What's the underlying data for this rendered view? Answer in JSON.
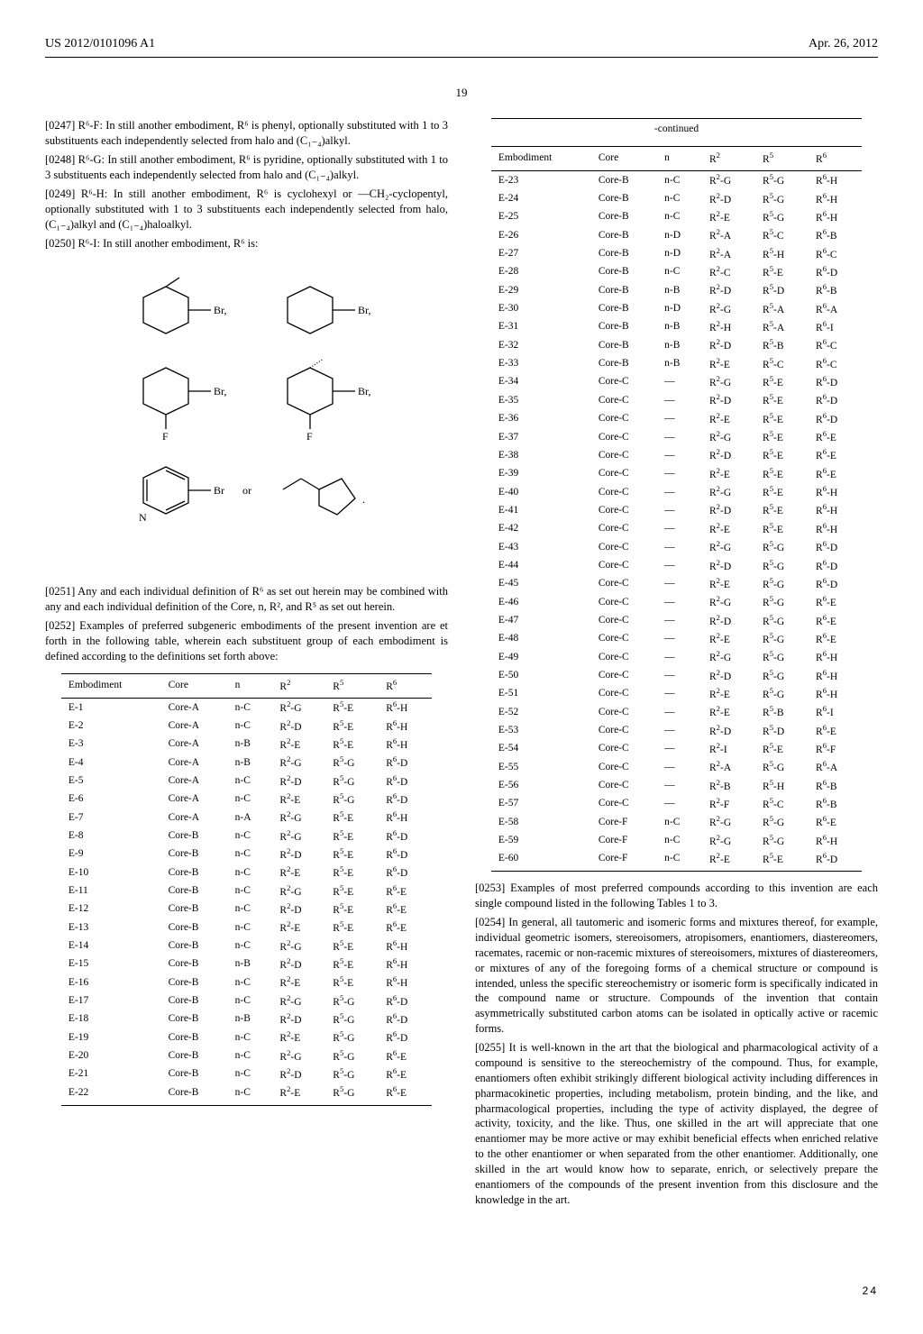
{
  "header": {
    "left": "US 2012/0101096 A1",
    "right": "Apr. 26, 2012"
  },
  "page_center": "19",
  "paras": {
    "p0247": "[0247]   R⁶-F: In still another embodiment, R⁶ is phenyl, optionally substituted with 1 to 3 substituents each independently selected from halo and (C₁₋₄)alkyl.",
    "p0248": "[0248]   R⁶-G: In still another embodiment, R⁶ is pyridine, optionally substituted with 1 to 3 substituents each independently selected from halo and (C₁₋₄)alkyl.",
    "p0249": "[0249]   R⁶-H: In still another embodiment, R⁶ is cyclohexyl or —CH₂-cyclopentyl, optionally substituted with 1 to 3 substituents each independently selected from halo, (C₁₋₄)alkyl and (C₁₋₄)haloalkyl.",
    "p0250": "[0250]   R⁶-I: In still another embodiment, R⁶ is:",
    "p0251": "[0251]   Any and each individual definition of R⁶ as set out herein may be combined with any and each individual definition of the Core, n, R², and R⁵ as set out herein.",
    "p0252": "[0252]   Examples of preferred subgeneric embodiments of the present invention are et forth in the following table, wherein each substituent group of each embodiment is defined according to the definitions set forth above:",
    "p0253": "[0253]   Examples of most preferred compounds according to this invention are each single compound listed in the following Tables 1 to 3.",
    "p0254": "[0254]   In general, all tautomeric and isomeric forms and mixtures thereof, for example, individual geometric isomers, stereoisomers, atropisomers, enantiomers, diastereomers, racemates, racemic or non-racemic mixtures of stereoisomers, mixtures of diastereomers, or mixtures of any of the foregoing forms of a chemical structure or compound is intended, unless the specific stereochemistry or isomeric form is specifically indicated in the compound name or structure. Compounds of the invention that contain asymmetrically substituted carbon atoms can be isolated in optically active or racemic forms.",
    "p0255": "[0255]   It is well-known in the art that the biological and pharmacological activity of a compound is sensitive to the stereochemistry of the compound. Thus, for example, enantiomers often exhibit strikingly different biological activity including differences in pharmacokinetic properties, including metabolism, protein binding, and the like, and pharmacological properties, including the type of activity displayed, the degree of activity, toxicity, and the like. Thus, one skilled in the art will appreciate that one enantiomer may be more active or may exhibit beneficial effects when enriched relative to the other enantiomer or when separated from the other enantiomer. Additionally, one skilled in the art would know how to separate, enrich, or selectively prepare the enantiomers of the compounds of the present invention from this disclosure and the knowledge in the art."
  },
  "continued_label": "-continued",
  "table_headers": [
    "Embodiment",
    "Core",
    "n",
    "R²",
    "R⁵",
    "R⁶"
  ],
  "table1": [
    [
      "E-1",
      "Core-A",
      "n-C",
      "R²-G",
      "R⁵-E",
      "R⁶-H"
    ],
    [
      "E-2",
      "Core-A",
      "n-C",
      "R²-D",
      "R⁵-E",
      "R⁶-H"
    ],
    [
      "E-3",
      "Core-A",
      "n-B",
      "R²-E",
      "R⁵-E",
      "R⁶-H"
    ],
    [
      "E-4",
      "Core-A",
      "n-B",
      "R²-G",
      "R⁵-G",
      "R⁶-D"
    ],
    [
      "E-5",
      "Core-A",
      "n-C",
      "R²-D",
      "R⁵-G",
      "R⁶-D"
    ],
    [
      "E-6",
      "Core-A",
      "n-C",
      "R²-E",
      "R⁵-G",
      "R⁶-D"
    ],
    [
      "E-7",
      "Core-A",
      "n-A",
      "R²-G",
      "R⁵-E",
      "R⁶-H"
    ],
    [
      "E-8",
      "Core-B",
      "n-C",
      "R²-G",
      "R⁵-E",
      "R⁶-D"
    ],
    [
      "E-9",
      "Core-B",
      "n-C",
      "R²-D",
      "R⁵-E",
      "R⁶-D"
    ],
    [
      "E-10",
      "Core-B",
      "n-C",
      "R²-E",
      "R⁵-E",
      "R⁶-D"
    ],
    [
      "E-11",
      "Core-B",
      "n-C",
      "R²-G",
      "R⁵-E",
      "R⁶-E"
    ],
    [
      "E-12",
      "Core-B",
      "n-C",
      "R²-D",
      "R⁵-E",
      "R⁶-E"
    ],
    [
      "E-13",
      "Core-B",
      "n-C",
      "R²-E",
      "R⁵-E",
      "R⁶-E"
    ],
    [
      "E-14",
      "Core-B",
      "n-C",
      "R²-G",
      "R⁵-E",
      "R⁶-H"
    ],
    [
      "E-15",
      "Core-B",
      "n-B",
      "R²-D",
      "R⁵-E",
      "R⁶-H"
    ],
    [
      "E-16",
      "Core-B",
      "n-C",
      "R²-E",
      "R⁵-E",
      "R⁶-H"
    ],
    [
      "E-17",
      "Core-B",
      "n-C",
      "R²-G",
      "R⁵-G",
      "R⁶-D"
    ],
    [
      "E-18",
      "Core-B",
      "n-B",
      "R²-D",
      "R⁵-G",
      "R⁶-D"
    ],
    [
      "E-19",
      "Core-B",
      "n-C",
      "R²-E",
      "R⁵-G",
      "R⁶-D"
    ],
    [
      "E-20",
      "Core-B",
      "n-C",
      "R²-G",
      "R⁵-G",
      "R⁶-E"
    ],
    [
      "E-21",
      "Core-B",
      "n-C",
      "R²-D",
      "R⁵-G",
      "R⁶-E"
    ],
    [
      "E-22",
      "Core-B",
      "n-C",
      "R²-E",
      "R⁵-G",
      "R⁶-E"
    ]
  ],
  "table2": [
    [
      "E-23",
      "Core-B",
      "n-C",
      "R²-G",
      "R⁵-G",
      "R⁶-H"
    ],
    [
      "E-24",
      "Core-B",
      "n-C",
      "R²-D",
      "R⁵-G",
      "R⁶-H"
    ],
    [
      "E-25",
      "Core-B",
      "n-C",
      "R²-E",
      "R⁵-G",
      "R⁶-H"
    ],
    [
      "E-26",
      "Core-B",
      "n-D",
      "R²-A",
      "R⁵-C",
      "R⁶-B"
    ],
    [
      "E-27",
      "Core-B",
      "n-D",
      "R²-A",
      "R⁵-H",
      "R⁶-C"
    ],
    [
      "E-28",
      "Core-B",
      "n-C",
      "R²-C",
      "R⁵-E",
      "R⁶-D"
    ],
    [
      "E-29",
      "Core-B",
      "n-B",
      "R²-D",
      "R⁵-D",
      "R⁶-B"
    ],
    [
      "E-30",
      "Core-B",
      "n-D",
      "R²-G",
      "R⁵-A",
      "R⁶-A"
    ],
    [
      "E-31",
      "Core-B",
      "n-B",
      "R²-H",
      "R⁵-A",
      "R⁶-I"
    ],
    [
      "E-32",
      "Core-B",
      "n-B",
      "R²-D",
      "R⁵-B",
      "R⁶-C"
    ],
    [
      "E-33",
      "Core-B",
      "n-B",
      "R²-E",
      "R⁵-C",
      "R⁶-C"
    ],
    [
      "E-34",
      "Core-C",
      "—",
      "R²-G",
      "R⁵-E",
      "R⁶-D"
    ],
    [
      "E-35",
      "Core-C",
      "—",
      "R²-D",
      "R⁵-E",
      "R⁶-D"
    ],
    [
      "E-36",
      "Core-C",
      "—",
      "R²-E",
      "R⁵-E",
      "R⁶-D"
    ],
    [
      "E-37",
      "Core-C",
      "—",
      "R²-G",
      "R⁵-E",
      "R⁶-E"
    ],
    [
      "E-38",
      "Core-C",
      "—",
      "R²-D",
      "R⁵-E",
      "R⁶-E"
    ],
    [
      "E-39",
      "Core-C",
      "—",
      "R²-E",
      "R⁵-E",
      "R⁶-E"
    ],
    [
      "E-40",
      "Core-C",
      "—",
      "R²-G",
      "R⁵-E",
      "R⁶-H"
    ],
    [
      "E-41",
      "Core-C",
      "—",
      "R²-D",
      "R⁵-E",
      "R⁶-H"
    ],
    [
      "E-42",
      "Core-C",
      "—",
      "R²-E",
      "R⁵-E",
      "R⁶-H"
    ],
    [
      "E-43",
      "Core-C",
      "—",
      "R²-G",
      "R⁵-G",
      "R⁶-D"
    ],
    [
      "E-44",
      "Core-C",
      "—",
      "R²-D",
      "R⁵-G",
      "R⁶-D"
    ],
    [
      "E-45",
      "Core-C",
      "—",
      "R²-E",
      "R⁵-G",
      "R⁶-D"
    ],
    [
      "E-46",
      "Core-C",
      "—",
      "R²-G",
      "R⁵-G",
      "R⁶-E"
    ],
    [
      "E-47",
      "Core-C",
      "—",
      "R²-D",
      "R⁵-G",
      "R⁶-E"
    ],
    [
      "E-48",
      "Core-C",
      "—",
      "R²-E",
      "R⁵-G",
      "R⁶-E"
    ],
    [
      "E-49",
      "Core-C",
      "—",
      "R²-G",
      "R⁵-G",
      "R⁶-H"
    ],
    [
      "E-50",
      "Core-C",
      "—",
      "R²-D",
      "R⁵-G",
      "R⁶-H"
    ],
    [
      "E-51",
      "Core-C",
      "—",
      "R²-E",
      "R⁵-G",
      "R⁶-H"
    ],
    [
      "E-52",
      "Core-C",
      "—",
      "R²-E",
      "R⁵-B",
      "R⁶-I"
    ],
    [
      "E-53",
      "Core-C",
      "—",
      "R²-D",
      "R⁵-D",
      "R⁶-E"
    ],
    [
      "E-54",
      "Core-C",
      "—",
      "R²-I",
      "R⁵-E",
      "R⁶-F"
    ],
    [
      "E-55",
      "Core-C",
      "—",
      "R²-A",
      "R⁵-G",
      "R⁶-A"
    ],
    [
      "E-56",
      "Core-C",
      "—",
      "R²-B",
      "R⁵-H",
      "R⁶-B"
    ],
    [
      "E-57",
      "Core-C",
      "—",
      "R²-F",
      "R⁵-C",
      "R⁶-B"
    ],
    [
      "E-58",
      "Core-F",
      "n-C",
      "R²-G",
      "R⁵-G",
      "R⁶-E"
    ],
    [
      "E-59",
      "Core-F",
      "n-C",
      "R²-G",
      "R⁵-G",
      "R⁶-H"
    ],
    [
      "E-60",
      "Core-F",
      "n-C",
      "R²-E",
      "R⁵-E",
      "R⁶-D"
    ]
  ],
  "sheet": "24"
}
